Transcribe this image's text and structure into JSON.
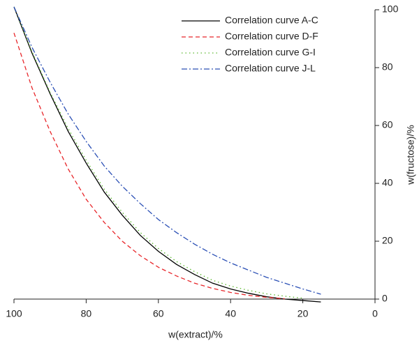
{
  "chart_data": {
    "type": "line",
    "x_label": "w(extract)/%",
    "y_label": "w(fructose)/%",
    "x": [
      100,
      95,
      90,
      85,
      80,
      75,
      70,
      65,
      60,
      55,
      50,
      45,
      40,
      35,
      30,
      25,
      20,
      15
    ],
    "series": [
      {
        "name": "Correlation curve A-C",
        "color": "#000000",
        "dash": "none",
        "values": [
          101,
          85,
          71,
          58,
          47,
          37,
          29,
          22,
          16.5,
          12,
          8.5,
          5.5,
          3.5,
          2,
          0.8,
          0,
          -0.5,
          -1
        ]
      },
      {
        "name": "Correlation curve D-F",
        "color": "#e8262a",
        "dash": "6,4",
        "values": [
          92,
          73,
          58,
          45,
          34.5,
          26.5,
          20,
          15,
          11,
          8,
          5.5,
          3.7,
          2.3,
          1.3,
          0.6,
          0.1,
          null,
          null
        ]
      },
      {
        "name": "Correlation curve G-I",
        "color": "#5bb82e",
        "dash": "1.5,4",
        "values": [
          101,
          85.5,
          71.5,
          59,
          48,
          38,
          30,
          23,
          17.5,
          13,
          9.5,
          6.5,
          4.5,
          3,
          1.8,
          1,
          0.3,
          null
        ]
      },
      {
        "name": "Correlation curve J-L",
        "color": "#2a4fb5",
        "dash": "8,3,2,3",
        "values": [
          101,
          87,
          75,
          64,
          54.5,
          46,
          39,
          33,
          27.5,
          23,
          19,
          15.5,
          12.5,
          10,
          7.5,
          5.5,
          3.5,
          1.7
        ]
      }
    ],
    "xlim": [
      100,
      0
    ],
    "xticks": [
      100,
      80,
      60,
      40,
      20,
      0
    ],
    "ylim": [
      0,
      100
    ],
    "yticks": [
      0,
      20,
      40,
      60,
      80,
      100
    ],
    "legend": "upper-right"
  }
}
